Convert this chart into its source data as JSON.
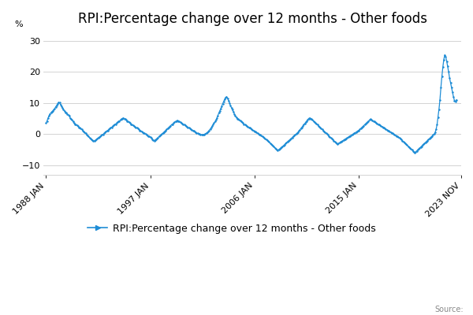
{
  "title": "RPI:Percentage change over 12 months - Other foods",
  "ylabel": "%",
  "legend_label": "RPI:Percentage change over 12 months - Other foods",
  "source_text": "Source:",
  "line_color": "#1f8dd6",
  "marker_color": "#1f8dd6",
  "background_color": "#ffffff",
  "grid_color": "#cccccc",
  "yticks": [
    -10,
    0,
    10,
    20,
    30
  ],
  "xtick_labels": [
    "1988 JAN",
    "1997 JAN",
    "2006 JAN",
    "2015 JAN",
    "2023 NOV"
  ],
  "ylim": [
    -13,
    33
  ],
  "title_fontsize": 12,
  "axis_fontsize": 8,
  "legend_fontsize": 9,
  "data": [
    3.5,
    4.2,
    5.1,
    5.8,
    6.5,
    6.8,
    7.2,
    7.5,
    7.8,
    8.2,
    8.8,
    9.2,
    9.8,
    10.2,
    10.1,
    9.5,
    9.0,
    8.5,
    8.0,
    7.5,
    7.0,
    6.8,
    6.5,
    6.2,
    5.8,
    5.2,
    4.8,
    4.5,
    4.0,
    3.5,
    3.2,
    3.0,
    2.8,
    2.5,
    2.2,
    2.0,
    1.8,
    1.5,
    1.2,
    0.8,
    0.5,
    0.2,
    -0.2,
    -0.5,
    -0.8,
    -1.2,
    -1.5,
    -1.8,
    -2.0,
    -2.1,
    -2.2,
    -2.0,
    -1.8,
    -1.5,
    -1.2,
    -1.0,
    -0.8,
    -0.5,
    -0.3,
    -0.1,
    0.2,
    0.5,
    0.8,
    1.0,
    1.2,
    1.5,
    1.8,
    2.0,
    2.2,
    2.5,
    2.8,
    3.0,
    3.2,
    3.5,
    3.8,
    4.0,
    4.2,
    4.5,
    4.8,
    5.0,
    5.2,
    5.0,
    4.8,
    4.5,
    4.2,
    4.0,
    3.8,
    3.5,
    3.2,
    3.0,
    2.8,
    2.6,
    2.4,
    2.2,
    2.0,
    1.8,
    1.5,
    1.2,
    1.0,
    0.8,
    0.6,
    0.4,
    0.2,
    0.0,
    -0.2,
    -0.4,
    -0.6,
    -0.8,
    -1.0,
    -1.3,
    -1.6,
    -1.9,
    -2.1,
    -1.9,
    -1.7,
    -1.4,
    -1.1,
    -0.8,
    -0.5,
    -0.3,
    0.0,
    0.3,
    0.6,
    0.9,
    1.2,
    1.5,
    1.8,
    2.1,
    2.4,
    2.7,
    3.0,
    3.2,
    3.5,
    3.8,
    4.0,
    4.2,
    4.4,
    4.2,
    4.0,
    3.8,
    3.6,
    3.4,
    3.2,
    3.0,
    2.8,
    2.6,
    2.4,
    2.2,
    2.0,
    1.8,
    1.6,
    1.4,
    1.2,
    1.0,
    0.8,
    0.6,
    0.4,
    0.2,
    0.1,
    0.0,
    -0.1,
    -0.2,
    -0.3,
    -0.2,
    -0.1,
    0.1,
    0.3,
    0.5,
    0.8,
    1.2,
    1.6,
    2.0,
    2.5,
    3.0,
    3.5,
    4.0,
    4.5,
    5.2,
    6.0,
    6.8,
    7.5,
    8.2,
    9.0,
    9.8,
    10.5,
    11.2,
    11.8,
    12.0,
    11.5,
    10.8,
    10.0,
    9.2,
    8.5,
    7.8,
    7.2,
    6.5,
    6.0,
    5.5,
    5.0,
    4.8,
    4.5,
    4.3,
    4.0,
    3.8,
    3.5,
    3.2,
    3.0,
    2.8,
    2.6,
    2.4,
    2.2,
    2.0,
    1.8,
    1.5,
    1.3,
    1.1,
    0.9,
    0.7,
    0.5,
    0.3,
    0.1,
    -0.1,
    -0.3,
    -0.5,
    -0.8,
    -1.0,
    -1.2,
    -1.5,
    -1.8,
    -2.0,
    -2.3,
    -2.6,
    -2.9,
    -3.2,
    -3.5,
    -3.8,
    -4.1,
    -4.4,
    -4.7,
    -5.0,
    -5.2,
    -5.0,
    -4.8,
    -4.5,
    -4.2,
    -4.0,
    -3.7,
    -3.4,
    -3.1,
    -2.8,
    -2.5,
    -2.2,
    -2.0,
    -1.7,
    -1.4,
    -1.1,
    -0.8,
    -0.5,
    -0.3,
    0.0,
    0.3,
    0.6,
    1.0,
    1.4,
    1.8,
    2.2,
    2.6,
    3.0,
    3.4,
    3.8,
    4.2,
    4.6,
    5.0,
    5.2,
    5.0,
    4.8,
    4.5,
    4.2,
    3.9,
    3.6,
    3.3,
    3.0,
    2.7,
    2.4,
    2.1,
    1.8,
    1.5,
    1.2,
    0.9,
    0.6,
    0.3,
    0.0,
    -0.3,
    -0.6,
    -0.9,
    -1.2,
    -1.5,
    -1.8,
    -2.1,
    -2.4,
    -2.7,
    -3.0,
    -3.2,
    -3.0,
    -2.8,
    -2.6,
    -2.4,
    -2.2,
    -2.0,
    -1.8,
    -1.6,
    -1.4,
    -1.2,
    -1.0,
    -0.8,
    -0.6,
    -0.4,
    -0.2,
    0.0,
    0.2,
    0.4,
    0.6,
    0.8,
    1.0,
    1.2,
    1.5,
    1.8,
    2.1,
    2.4,
    2.7,
    3.0,
    3.3,
    3.6,
    3.9,
    4.2,
    4.5,
    4.8,
    4.6,
    4.4,
    4.2,
    4.0,
    3.8,
    3.6,
    3.4,
    3.2,
    3.0,
    2.8,
    2.6,
    2.4,
    2.2,
    2.0,
    1.8,
    1.6,
    1.4,
    1.2,
    1.0,
    0.8,
    0.6,
    0.4,
    0.2,
    0.0,
    -0.2,
    -0.4,
    -0.6,
    -0.8,
    -1.0,
    -1.2,
    -1.5,
    -1.8,
    -2.1,
    -2.4,
    -2.7,
    -3.0,
    -3.3,
    -3.6,
    -3.9,
    -4.2,
    -4.5,
    -4.8,
    -5.1,
    -5.4,
    -5.7,
    -6.0,
    -5.7,
    -5.4,
    -5.1,
    -4.8,
    -4.5,
    -4.2,
    -3.9,
    -3.6,
    -3.3,
    -3.0,
    -2.7,
    -2.4,
    -2.1,
    -1.8,
    -1.5,
    -1.2,
    -0.9,
    -0.6,
    -0.3,
    0.0,
    0.5,
    1.5,
    3.0,
    5.5,
    8.0,
    11.0,
    15.0,
    18.5,
    21.5,
    24.0,
    25.5,
    24.8,
    23.5,
    21.8,
    20.0,
    18.0,
    16.5,
    15.0,
    13.5,
    12.0,
    10.8,
    10.5,
    11.0
  ]
}
